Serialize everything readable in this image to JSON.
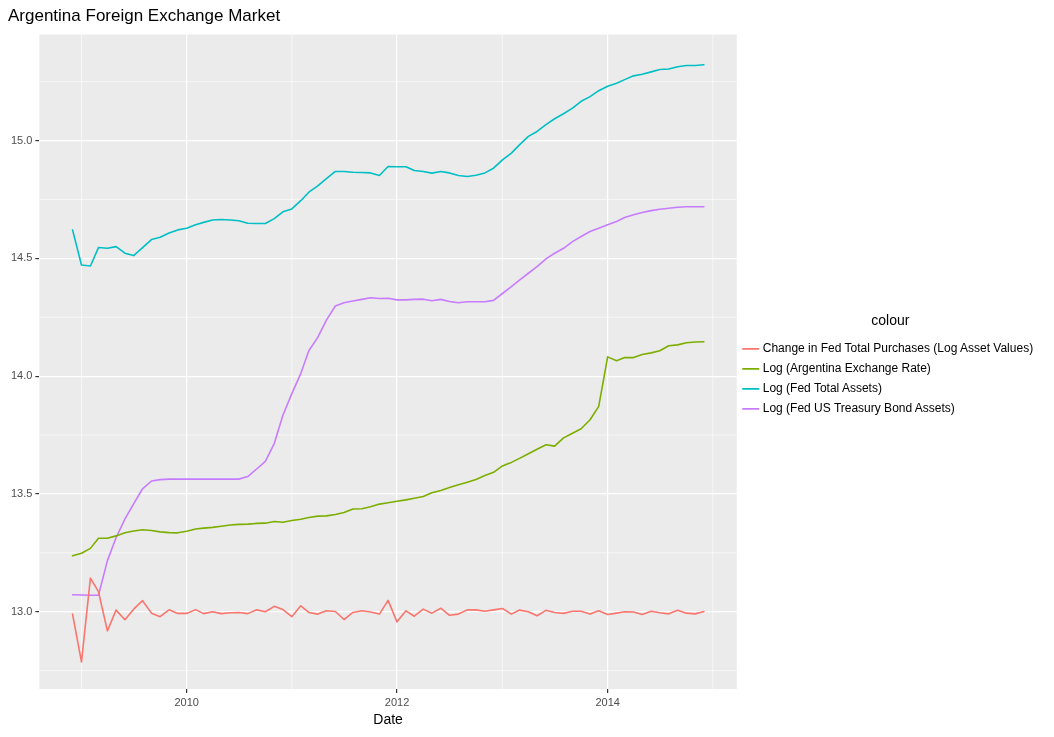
{
  "chart_data": {
    "type": "line",
    "title": "Argentina Foreign Exchange Market",
    "xlabel": "Date",
    "legend_title": "colour",
    "legend": "right",
    "grid": true,
    "marker": "none",
    "line_style": "solid",
    "x": [
      "2008-12",
      "2009-01",
      "2009-02",
      "2009-03",
      "2009-04",
      "2009-05",
      "2009-06",
      "2009-07",
      "2009-08",
      "2009-09",
      "2009-10",
      "2009-11",
      "2009-12",
      "2010-01",
      "2010-02",
      "2010-03",
      "2010-04",
      "2010-05",
      "2010-06",
      "2010-07",
      "2010-08",
      "2010-09",
      "2010-10",
      "2010-11",
      "2010-12",
      "2011-01",
      "2011-02",
      "2011-03",
      "2011-04",
      "2011-05",
      "2011-06",
      "2011-07",
      "2011-08",
      "2011-09",
      "2011-10",
      "2011-11",
      "2011-12",
      "2012-01",
      "2012-02",
      "2012-03",
      "2012-04",
      "2012-05",
      "2012-06",
      "2012-07",
      "2012-08",
      "2012-09",
      "2012-10",
      "2012-11",
      "2012-12",
      "2013-01",
      "2013-02",
      "2013-03",
      "2013-04",
      "2013-05",
      "2013-06",
      "2013-07",
      "2013-08",
      "2013-09",
      "2013-10",
      "2013-11",
      "2013-12",
      "2014-01",
      "2014-02",
      "2014-03",
      "2014-04",
      "2014-05",
      "2014-06",
      "2014-07",
      "2014-08",
      "2014-09",
      "2014-10",
      "2014-11",
      "2014-12"
    ],
    "xlim": [
      "2008-08-08",
      "2015-03-25"
    ],
    "xticks": [
      "2010",
      "2012",
      "2014"
    ],
    "ylim": [
      12.672,
      15.451
    ],
    "yticks": [
      {
        "value": 13,
        "label": "13.0"
      },
      {
        "value": 13.5,
        "label": "13.5"
      },
      {
        "value": 14,
        "label": "14.0"
      },
      {
        "value": 14.5,
        "label": "14.5"
      },
      {
        "value": 15,
        "label": "15.0"
      }
    ],
    "series": [
      {
        "name": "Change in Fed Total Purchases (Log Asset Values)",
        "color": "#f8766d",
        "values": [
          12.99,
          12.787,
          13.143,
          13.085,
          12.919,
          13.007,
          12.966,
          13.011,
          13.047,
          12.994,
          12.979,
          13.008,
          12.993,
          12.993,
          13.009,
          12.992,
          13.0,
          12.992,
          12.996,
          12.997,
          12.992,
          13.008,
          13.0,
          13.023,
          13.009,
          12.979,
          13.025,
          12.997,
          12.99,
          13.004,
          13.001,
          12.967,
          12.997,
          13.004,
          12.999,
          12.99,
          13.048,
          12.957,
          13.004,
          12.981,
          13.011,
          12.994,
          13.015,
          12.985,
          12.99,
          13.008,
          13.008,
          13.002,
          13.008,
          13.014,
          12.99,
          13.007,
          13.0,
          12.983,
          13.006,
          12.997,
          12.993,
          13.002,
          13.002,
          12.99,
          13.004,
          12.988,
          12.994,
          13.0,
          12.999,
          12.988,
          13.002,
          12.996,
          12.991,
          13.006,
          12.994,
          12.991,
          13.001
        ]
      },
      {
        "name": "Log (Argentina Exchange Rate)",
        "color": "#7cae00",
        "values": [
          13.238,
          13.248,
          13.269,
          13.312,
          13.312,
          13.322,
          13.335,
          13.343,
          13.348,
          13.345,
          13.339,
          13.336,
          13.335,
          13.342,
          13.351,
          13.355,
          13.358,
          13.363,
          13.368,
          13.371,
          13.372,
          13.375,
          13.376,
          13.383,
          13.38,
          13.387,
          13.393,
          13.4,
          13.406,
          13.407,
          13.413,
          13.421,
          13.436,
          13.437,
          13.446,
          13.457,
          13.463,
          13.469,
          13.475,
          13.482,
          13.489,
          13.505,
          13.515,
          13.527,
          13.539,
          13.55,
          13.561,
          13.578,
          13.592,
          13.619,
          13.634,
          13.651,
          13.671,
          13.69,
          13.709,
          13.703,
          13.738,
          13.758,
          13.777,
          13.815,
          13.872,
          14.082,
          14.066,
          14.079,
          14.079,
          14.092,
          14.099,
          14.108,
          14.129,
          14.133,
          14.142,
          14.145,
          14.146
        ]
      },
      {
        "name": "Log (Fed Total Assets)",
        "color": "#00bfc4",
        "values": [
          14.621,
          14.472,
          14.468,
          14.546,
          14.543,
          14.55,
          14.522,
          14.512,
          14.546,
          14.58,
          14.59,
          14.608,
          14.621,
          14.628,
          14.643,
          14.653,
          14.663,
          14.665,
          14.663,
          14.66,
          14.649,
          14.648,
          14.648,
          14.669,
          14.698,
          14.71,
          14.745,
          14.781,
          14.808,
          14.839,
          14.869,
          14.869,
          14.866,
          14.865,
          14.863,
          14.852,
          14.89,
          14.889,
          14.889,
          14.873,
          14.869,
          14.862,
          14.869,
          14.863,
          14.852,
          14.848,
          14.853,
          14.863,
          14.883,
          14.918,
          14.947,
          14.982,
          15.018,
          15.039,
          15.068,
          15.093,
          15.114,
          15.138,
          15.167,
          15.187,
          15.212,
          15.231,
          15.244,
          15.259,
          15.275,
          15.282,
          15.292,
          15.302,
          15.304,
          15.314,
          15.319,
          15.319,
          15.322
        ]
      },
      {
        "name": "Log (Fed US Treasury Bond Assets)",
        "color": "#c77cff",
        "values": [
          13.072,
          13.071,
          13.07,
          13.07,
          13.217,
          13.314,
          13.394,
          13.458,
          13.522,
          13.555,
          13.561,
          13.563,
          13.563,
          13.563,
          13.563,
          13.563,
          13.563,
          13.563,
          13.563,
          13.563,
          13.574,
          13.606,
          13.638,
          13.714,
          13.834,
          13.926,
          14.011,
          14.108,
          14.165,
          14.238,
          14.298,
          14.312,
          14.319,
          14.326,
          14.333,
          14.33,
          14.331,
          14.324,
          14.324,
          14.326,
          14.327,
          14.32,
          14.326,
          14.317,
          14.312,
          14.316,
          14.316,
          14.316,
          14.322,
          14.351,
          14.38,
          14.408,
          14.437,
          14.465,
          14.498,
          14.522,
          14.543,
          14.571,
          14.593,
          14.614,
          14.628,
          14.643,
          14.657,
          14.674,
          14.685,
          14.695,
          14.703,
          14.709,
          14.713,
          14.717,
          14.719,
          14.719,
          14.719
        ]
      }
    ]
  }
}
